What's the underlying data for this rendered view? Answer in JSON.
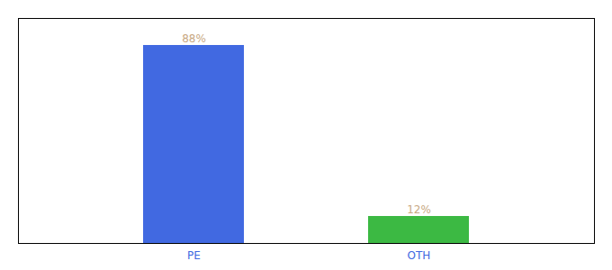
{
  "chart_data": {
    "type": "bar",
    "categories": [
      "PE",
      "OTH"
    ],
    "values": [
      88,
      12
    ],
    "value_labels": [
      "88%",
      "12%"
    ],
    "colors": [
      "#4169E1",
      "#3CB943"
    ],
    "ylim": [
      0,
      100
    ],
    "data_labels": true,
    "tick_labels": "x",
    "grid": false
  }
}
